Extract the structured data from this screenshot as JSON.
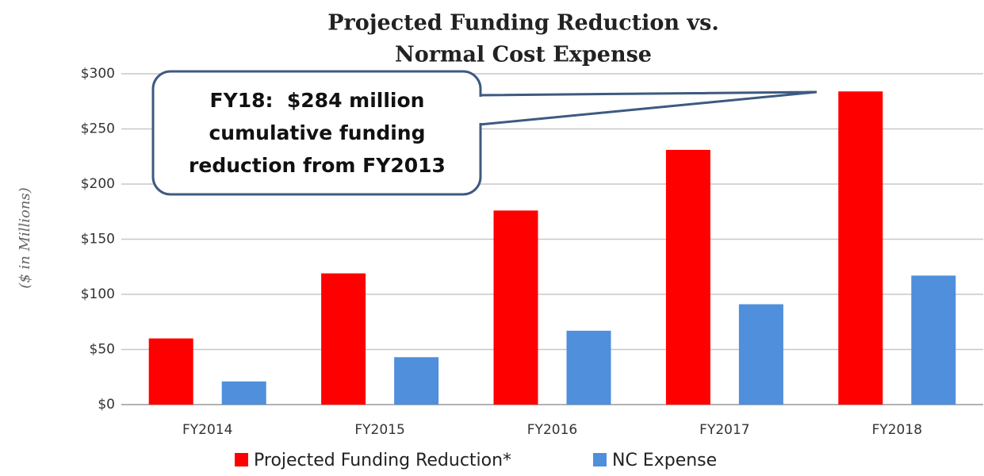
{
  "chart_data": {
    "type": "bar",
    "title": [
      "Projected Funding Reduction vs.",
      "Normal Cost Expense"
    ],
    "ylabel": "($ in Millions)",
    "annotation": [
      "FY18:  $284 million",
      "cumulative funding",
      "reduction from FY2013"
    ],
    "categories": [
      "FY2014",
      "FY2015",
      "FY2016",
      "FY2017",
      "FY2018"
    ],
    "series": [
      {
        "name": "Projected Funding Reduction*",
        "color": "#ff0000",
        "values": [
          60,
          119,
          176,
          231,
          284
        ]
      },
      {
        "name": "NC Expense",
        "color": "#4f8fdc",
        "values": [
          21,
          43,
          67,
          91,
          117
        ]
      }
    ],
    "ylim": [
      0,
      300
    ],
    "yticks": [
      {
        "value": 0,
        "label": "$0"
      },
      {
        "value": 50,
        "label": "$50"
      },
      {
        "value": 100,
        "label": "$100"
      },
      {
        "value": 150,
        "label": "$150"
      },
      {
        "value": 200,
        "label": "$200"
      },
      {
        "value": 250,
        "label": "$250"
      },
      {
        "value": 300,
        "label": "$300"
      }
    ],
    "grid": true,
    "legend": "bottom"
  }
}
